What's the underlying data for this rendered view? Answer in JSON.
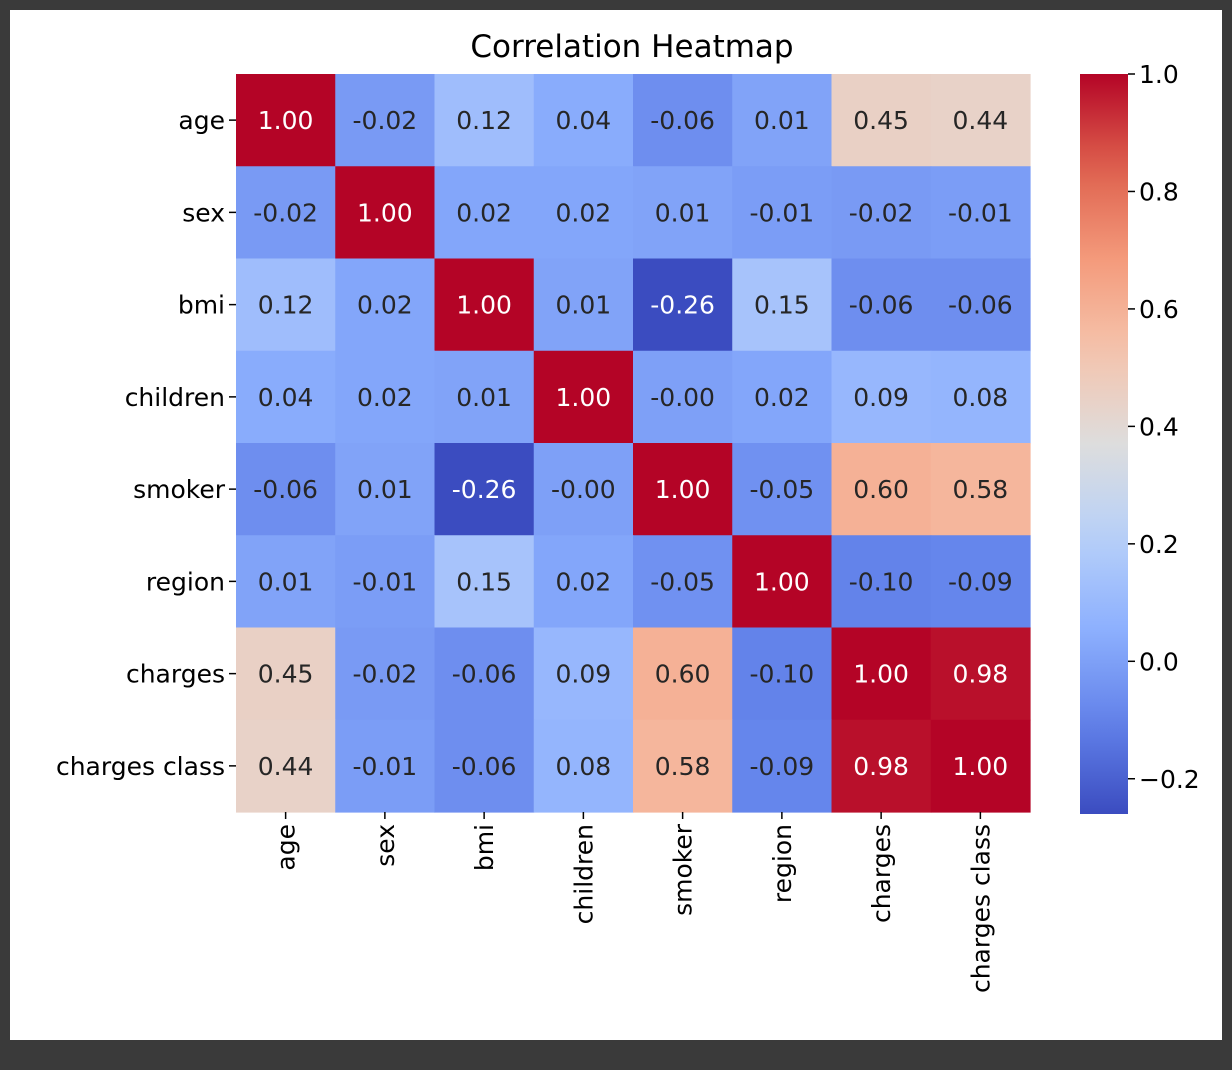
{
  "chart_data": {
    "type": "heatmap",
    "title": "Correlation Heatmap",
    "xlabel": "",
    "ylabel": "",
    "colormap": "coolwarm",
    "value_format": "2 decimals",
    "labels": [
      "age",
      "sex",
      "bmi",
      "children",
      "smoker",
      "region",
      "charges",
      "charges class"
    ],
    "values": [
      [
        1.0,
        -0.02,
        0.12,
        0.04,
        -0.06,
        0.01,
        0.45,
        0.44
      ],
      [
        -0.02,
        1.0,
        0.02,
        0.02,
        0.01,
        -0.01,
        -0.02,
        -0.01
      ],
      [
        0.12,
        0.02,
        1.0,
        0.01,
        -0.26,
        0.15,
        -0.06,
        -0.06
      ],
      [
        0.04,
        0.02,
        0.01,
        1.0,
        -0.0,
        0.02,
        0.09,
        0.08
      ],
      [
        -0.06,
        0.01,
        -0.26,
        -0.0,
        1.0,
        -0.05,
        0.6,
        0.58
      ],
      [
        0.01,
        -0.01,
        0.15,
        0.02,
        -0.05,
        1.0,
        -0.1,
        -0.09
      ],
      [
        0.45,
        -0.02,
        -0.06,
        0.09,
        0.6,
        -0.1,
        1.0,
        0.98
      ],
      [
        0.44,
        -0.01,
        -0.06,
        0.08,
        0.58,
        -0.09,
        0.98,
        1.0
      ]
    ],
    "display_values": [
      [
        "1.00",
        "-0.02",
        "0.12",
        "0.04",
        "-0.06",
        "0.01",
        "0.45",
        "0.44"
      ],
      [
        "-0.02",
        "1.00",
        "0.02",
        "0.02",
        "0.01",
        "-0.01",
        "-0.02",
        "-0.01"
      ],
      [
        "0.12",
        "0.02",
        "1.00",
        "0.01",
        "-0.26",
        "0.15",
        "-0.06",
        "-0.06"
      ],
      [
        "0.04",
        "0.02",
        "0.01",
        "1.00",
        "-0.00",
        "0.02",
        "0.09",
        "0.08"
      ],
      [
        "-0.06",
        "0.01",
        "-0.26",
        "-0.00",
        "1.00",
        "-0.05",
        "0.60",
        "0.58"
      ],
      [
        "0.01",
        "-0.01",
        "0.15",
        "0.02",
        "-0.05",
        "1.00",
        "-0.10",
        "-0.09"
      ],
      [
        "0.45",
        "-0.02",
        "-0.06",
        "0.09",
        "0.60",
        "-0.10",
        "1.00",
        "0.98"
      ],
      [
        "0.44",
        "-0.01",
        "-0.06",
        "0.08",
        "0.58",
        "-0.09",
        "0.98",
        "1.00"
      ]
    ],
    "colorbar": {
      "range": [
        -0.26,
        1.0
      ],
      "ticks": [
        -0.2,
        0.0,
        0.2,
        0.4,
        0.6,
        0.8,
        1.0
      ],
      "tick_labels": [
        "−0.2",
        "0.0",
        "0.2",
        "0.4",
        "0.6",
        "0.8",
        "1.0"
      ],
      "placement": "right"
    },
    "colors": {
      "low": "#3b4cc0",
      "mid": "#dddcdc",
      "high": "#b40426",
      "figure_bg": "#ffffff",
      "outer_bg": "#3a3a3a",
      "text_dark": "#262626",
      "text_light": "#ffffff"
    }
  }
}
